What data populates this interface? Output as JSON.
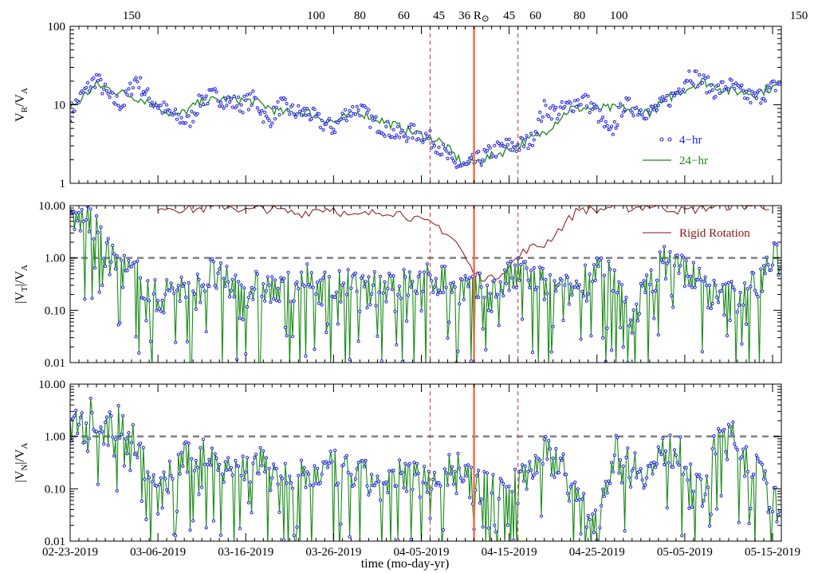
{
  "figure": {
    "xlabel": "time (mo-day-yr)",
    "x_ticks": [
      "02-23-2019",
      "03-06-2019",
      "03-16-2019",
      "03-26-2019",
      "04-05-2019",
      "04-15-2019",
      "04-25-2019",
      "05-05-2019",
      "05-15-2019"
    ],
    "top_ticks": [
      {
        "label": "150",
        "day": 7
      },
      {
        "label": "100",
        "day": 28
      },
      {
        "label": "80",
        "day": 33
      },
      {
        "label": "60",
        "day": 38
      },
      {
        "label": "45",
        "day": 42
      },
      {
        "label": "36 R",
        "suffix": "⊙",
        "day": 46,
        "highlight": true
      },
      {
        "label": "45",
        "day": 50
      },
      {
        "label": "60",
        "day": 53
      },
      {
        "label": "80",
        "day": 58
      },
      {
        "label": "100",
        "day": 62.5
      },
      {
        "label": "150",
        "day": 83
      }
    ],
    "colors": {
      "dots": "#1f1fe0",
      "line24": "#1a8a1a",
      "rigid": "#8b1010",
      "perihelion": "#f07050",
      "ref_line": "#808080"
    }
  },
  "chart_data": [
    {
      "type": "scatter",
      "panel": "top",
      "ylabel": {
        "main": "V",
        "sub": "R",
        "mid": "/V",
        "sub2": "A"
      },
      "yscale": "log",
      "ylim": [
        1,
        100
      ],
      "y_ticks": [
        "1",
        "10",
        "100"
      ],
      "xlim_days": [
        0,
        81
      ],
      "x_start_date": "02-23-2019",
      "legend": [
        "4−hr",
        "24−hr"
      ],
      "legend_position": "bottom-right",
      "series": [
        {
          "name": "4−hr",
          "x": [
            0,
            1.5,
            3,
            4.5,
            6,
            7.5,
            9,
            10.5,
            12,
            13.5,
            15,
            16.5,
            18,
            19.5,
            21,
            22.5,
            24,
            25.5,
            27,
            28.5,
            30,
            31.5,
            33,
            34.5,
            36,
            37.5,
            39,
            40.5,
            42,
            43.5,
            45,
            46.5,
            48,
            49.5,
            51,
            52.5,
            54,
            55.5,
            57,
            58.5,
            60,
            61.5,
            63,
            64.5,
            66,
            67.5,
            69,
            70.5,
            72,
            73.5,
            75,
            76.5,
            78,
            79.5,
            81
          ],
          "y": [
            8,
            14,
            22,
            12,
            10,
            22,
            12,
            9,
            7,
            6,
            12,
            13,
            11,
            10,
            12,
            6,
            10,
            8,
            8,
            6,
            5,
            8,
            9,
            6,
            5,
            4,
            4.5,
            4,
            3,
            1.8,
            1.6,
            2,
            2.5,
            3,
            3,
            3.5,
            9,
            8,
            10,
            12,
            8,
            4,
            10,
            9,
            8,
            10,
            14,
            25,
            20,
            15,
            18,
            14,
            12,
            15,
            20
          ]
        },
        {
          "name": "24−hr",
          "x": [
            0,
            3,
            6,
            9,
            12,
            15,
            18,
            21,
            24,
            27,
            30,
            33,
            36,
            39,
            42,
            45,
            48,
            51,
            54,
            57,
            60,
            63,
            66,
            69,
            72,
            75,
            78,
            81
          ],
          "y": [
            9,
            18,
            14,
            11,
            7,
            11,
            12,
            11,
            8,
            8,
            6,
            8,
            6,
            4.5,
            3.5,
            1.7,
            2.2,
            3,
            4.5,
            9,
            9,
            9,
            8,
            14,
            20,
            15,
            14,
            18
          ]
        }
      ]
    },
    {
      "type": "scatter",
      "panel": "middle",
      "ylabel": {
        "main": "|V",
        "sub": "T",
        "mid": "|/V",
        "sub2": "A"
      },
      "yscale": "log",
      "ylim": [
        0.01,
        10
      ],
      "y_ticks": [
        "0.01",
        "0.10",
        "1.00",
        "10.00"
      ],
      "ref_line": 1,
      "legend": [
        "Rigid Rotation"
      ],
      "legend_position": "top-right",
      "series": [
        {
          "name": "Rigid Rotation",
          "x": [
            10,
            12,
            14,
            16,
            18,
            20,
            22,
            24,
            26,
            28,
            30,
            32,
            34,
            36,
            38,
            40,
            42,
            44,
            46,
            48,
            50,
            52,
            54,
            56,
            58,
            60,
            62,
            64,
            66,
            68,
            70,
            72,
            74,
            76,
            78,
            80
          ],
          "y": [
            10,
            9,
            8.5,
            9,
            10,
            8,
            9,
            8,
            7,
            8.5,
            9,
            6,
            7,
            8,
            7,
            5,
            4,
            2,
            0.5,
            0.4,
            0.7,
            1.5,
            1.8,
            4,
            9,
            8,
            10,
            9,
            10,
            9,
            8,
            9,
            10,
            10,
            10,
            10
          ]
        },
        {
          "name": "4−hr",
          "x": [
            0,
            2,
            4,
            6,
            8,
            10,
            12,
            14,
            16,
            18,
            20,
            22,
            24,
            26,
            28,
            30,
            32,
            34,
            36,
            38,
            40,
            42,
            44,
            46,
            48,
            50,
            52,
            54,
            56,
            58,
            60,
            62,
            64,
            66,
            68,
            70,
            72,
            74,
            76,
            78,
            80
          ],
          "y": [
            4,
            7,
            1.2,
            0.6,
            0.4,
            0.15,
            0.3,
            0.2,
            0.5,
            0.3,
            0.25,
            0.3,
            0.2,
            0.4,
            0.3,
            0.25,
            0.3,
            0.2,
            0.4,
            0.3,
            0.35,
            0.4,
            0.3,
            0.25,
            0.2,
            0.4,
            0.5,
            0.3,
            0.2,
            0.3,
            0.7,
            0.3,
            0.07,
            0.4,
            0.9,
            0.6,
            0.3,
            0.15,
            0.2,
            0.3,
            0.9
          ]
        }
      ]
    },
    {
      "type": "scatter",
      "panel": "bottom",
      "ylabel": {
        "main": "|V",
        "sub": "N",
        "mid": "|/V",
        "sub2": "A"
      },
      "yscale": "log",
      "ylim": [
        0.01,
        10
      ],
      "y_ticks": [
        "0.01",
        "0.10",
        "1.00",
        "10.00"
      ],
      "ref_line": 1,
      "series": [
        {
          "name": "4−hr",
          "x": [
            0,
            2,
            4,
            6,
            8,
            10,
            12,
            14,
            16,
            18,
            20,
            22,
            24,
            26,
            28,
            30,
            32,
            34,
            36,
            38,
            40,
            42,
            44,
            46,
            48,
            50,
            52,
            54,
            56,
            58,
            60,
            62,
            64,
            66,
            68,
            70,
            72,
            74,
            76,
            78,
            80
          ],
          "y": [
            1.5,
            4,
            1.2,
            2.2,
            0.5,
            0.06,
            0.3,
            0.4,
            0.5,
            0.3,
            0.25,
            0.3,
            0.2,
            0.15,
            0.2,
            0.25,
            0.2,
            0.15,
            0.1,
            0.2,
            0.15,
            0.2,
            0.25,
            0.1,
            0.12,
            0.15,
            0.2,
            0.5,
            0.3,
            0.04,
            0.03,
            0.5,
            0.3,
            0.2,
            0.6,
            0.4,
            0.07,
            1.2,
            0.8,
            0.3,
            0.05
          ]
        }
      ]
    }
  ],
  "markers": {
    "perihelion_day": 46,
    "dashed_days": [
      41,
      51
    ]
  }
}
